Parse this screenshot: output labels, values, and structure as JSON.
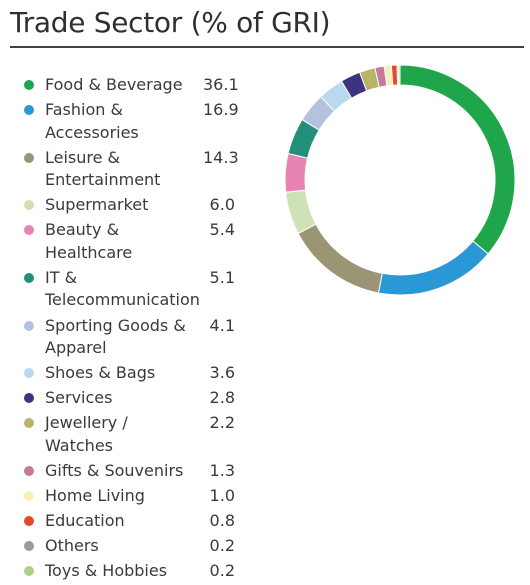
{
  "title": "Trade Sector (% of GRI)",
  "chart_data": {
    "type": "pie",
    "variant": "donut",
    "title": "Trade Sector (% of GRI)",
    "legend_position": "left",
    "categories": [
      "Food & Beverage",
      "Fashion & Accessories",
      "Leisure & Entertainment",
      "Supermarket",
      "Beauty & Healthcare",
      "IT & Telecommunication",
      "Sporting Goods & Apparel",
      "Shoes & Bags",
      "Services",
      "Jewellery / Watches",
      "Gifts & Souvenirs",
      "Home Living",
      "Education",
      "Others",
      "Toys & Hobbies"
    ],
    "legend_lines": [
      [
        "Food & Beverage"
      ],
      [
        "Fashion &",
        "Accessories"
      ],
      [
        "Leisure &",
        "Entertainment"
      ],
      [
        "Supermarket"
      ],
      [
        "Beauty &",
        "Healthcare"
      ],
      [
        "IT &",
        "Telecommunication"
      ],
      [
        "Sporting Goods &",
        "Apparel"
      ],
      [
        "Shoes & Bags"
      ],
      [
        "Services"
      ],
      [
        "Jewellery / Watches"
      ],
      [
        "Gifts & Souvenirs"
      ],
      [
        "Home Living"
      ],
      [
        "Education"
      ],
      [
        "Others"
      ],
      [
        "Toys & Hobbies"
      ]
    ],
    "values": [
      36.1,
      16.9,
      14.3,
      6.0,
      5.4,
      5.1,
      4.1,
      3.6,
      2.8,
      2.2,
      1.3,
      1.0,
      0.8,
      0.2,
      0.2
    ],
    "value_labels": [
      "36.1",
      "16.9",
      "14.3",
      "6.0",
      "5.4",
      "5.1",
      "4.1",
      "3.6",
      "2.8",
      "2.2",
      "1.3",
      "1.0",
      "0.8",
      "0.2",
      "0.2"
    ],
    "colors": [
      "#1fa64a",
      "#2a98d6",
      "#9a9574",
      "#cfe2b5",
      "#e884b2",
      "#238f7b",
      "#b5c2df",
      "#b9d9ee",
      "#3b347f",
      "#b9b46a",
      "#c67999",
      "#f6efb6",
      "#e34a28",
      "#9a9a9a",
      "#b0cf83"
    ]
  }
}
